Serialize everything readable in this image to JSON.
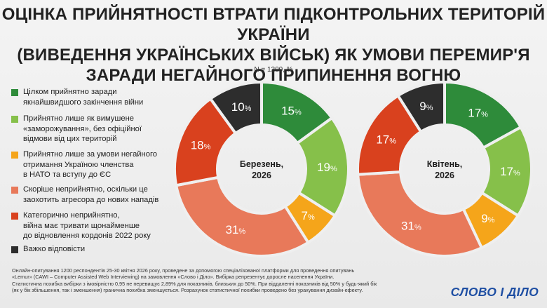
{
  "title_lines": [
    "ОЦІНКА ПРИЙНЯТНОСТІ ВТРАТИ ПІДКОНТРОЛЬНИХ ТЕРИТОРІЙ УКРАЇНИ",
    "(ВИВЕДЕННЯ УКРАЇНСЬКИХ ВІЙСЬК) ЯК УМОВИ ПЕРЕМИР'Я",
    "ЗАРАДИ НЕГАЙНОГО ПРИПИНЕННЯ ВОГНЮ"
  ],
  "subtitle": "N = 1200, %",
  "legend": [
    {
      "lines": [
        "Цілком прийнятно заради",
        "якнайшвидшого закінчення війни"
      ],
      "color": "#2e8b3a"
    },
    {
      "lines": [
        "Прийнятно лише як вимушене",
        "«заморожування», без офіційної",
        "відмови від цих територій"
      ],
      "color": "#86c04a"
    },
    {
      "lines": [
        "Прийнятно лише за умови негайного",
        "отримання Україною членства",
        "в НАТО та вступу до ЄС"
      ],
      "color": "#f5a51a"
    },
    {
      "lines": [
        "Скоріше неприйнятно, оскільки це",
        "заохотить агресора до нових нападів"
      ],
      "color": "#e8795a"
    },
    {
      "lines": [
        "Категорично неприйнятно,",
        "війна має тривати щонайменше",
        "до відновлення кордонів 2022 року"
      ],
      "color": "#d9411e"
    },
    {
      "lines": [
        "Важко відповісти"
      ],
      "color": "#2d2d2d"
    }
  ],
  "chart_data": [
    {
      "type": "donut",
      "center_label": [
        "Березень,",
        "2026"
      ],
      "unit": "%",
      "categories": [
        "Цілком прийнятно заради якнайшвидшого закінчення війни",
        "Прийнятно лише як вимушене «заморожування», без офіційної відмови від цих територій",
        "Прийнятно лише за умови негайного отримання Україною членства в НАТО та вступу до ЄС",
        "Скоріше неприйнятно, оскільки це заохотить агресора до нових нападів",
        "Категорично неприйнятно, війна має тривати щонайменше до відновлення кордонів 2022 року",
        "Важко відповісти"
      ],
      "values": [
        15,
        19,
        7,
        31,
        18,
        10
      ],
      "colors": [
        "#2e8b3a",
        "#86c04a",
        "#f5a51a",
        "#e8795a",
        "#d9411e",
        "#2d2d2d"
      ]
    },
    {
      "type": "donut",
      "center_label": [
        "Квітень,",
        "2026"
      ],
      "unit": "%",
      "categories": [
        "Цілком прийнятно заради якнайшвидшого закінчення війни",
        "Прийнятно лише як вимушене «заморожування», без офіційної відмови від цих територій",
        "Прийнятно лише за умови негайного отримання Україною членства в НАТО та вступу до ЄС",
        "Скоріше неприйнятно, оскільки це заохотить агресора до нових нападів",
        "Категорично неприйнятно, війна має тривати щонайменше до відновлення кордонів 2022 року",
        "Важко відповісти"
      ],
      "values": [
        17,
        17,
        9,
        31,
        17,
        9
      ],
      "colors": [
        "#2e8b3a",
        "#86c04a",
        "#f5a51a",
        "#e8795a",
        "#d9411e",
        "#2d2d2d"
      ]
    }
  ],
  "footnote_lines": [
    "Онлайн-опитування 1200 респондентів 25-30 квітня 2026 року, проведене за допомогою спеціалізованої платформи для проведення опитувань",
    "«Lemur» (CAWI – Computer Assisted Web Interviewing) на замовлення «Слово і Діло». Вибірка репрезентує доросле населення України.",
    "Статистична похибка вибірки з імовірністю 0,95 не перевищує 2,89% для показників, близьких до 50%. При віддаленні показників від 50% у будь-який бік",
    "(як у бік збільшення, так і зменшення) гранична похибка зменшується. Розрахунок статистичної похибки проведено без урахування дизайн-ефекту."
  ],
  "logo_text": "СЛОВО І ДІЛО"
}
